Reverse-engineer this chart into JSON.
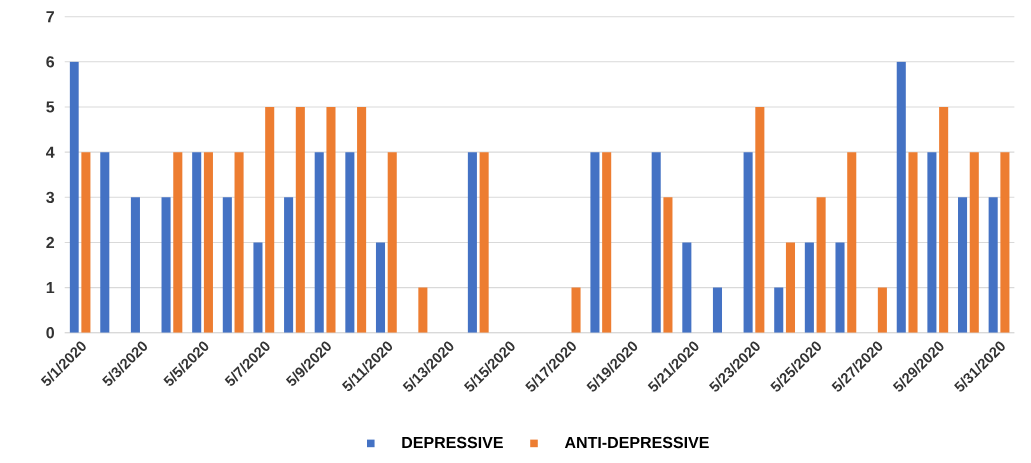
{
  "chart_data": {
    "type": "bar",
    "categories": [
      "5/1/2020",
      null,
      "5/3/2020",
      null,
      "5/5/2020",
      null,
      "5/7/2020",
      null,
      "5/9/2020",
      null,
      "5/11/2020",
      null,
      "5/13/2020",
      null,
      "5/15/2020",
      null,
      "5/17/2020",
      null,
      "5/19/2020",
      null,
      "5/21/2020",
      null,
      "5/23/2020",
      null,
      "5/25/2020",
      null,
      "5/27/2020",
      null,
      "5/29/2020",
      null,
      "5/31/2020"
    ],
    "series": [
      {
        "name": "DEPRESSIVE",
        "color": "#4472c4",
        "values": [
          6,
          4,
          3,
          3,
          4,
          3,
          2,
          3,
          4,
          4,
          2,
          0,
          0,
          4,
          0,
          0,
          0,
          4,
          0,
          4,
          2,
          1,
          4,
          1,
          2,
          2,
          0,
          6,
          4,
          3,
          3
        ]
      },
      {
        "name": "ANTI-DEPRESSIVE",
        "color": "#ed7d31",
        "values": [
          4,
          0,
          0,
          4,
          4,
          4,
          5,
          5,
          5,
          5,
          4,
          1,
          0,
          4,
          0,
          0,
          1,
          4,
          0,
          3,
          0,
          0,
          5,
          2,
          3,
          4,
          1,
          4,
          5,
          4,
          4
        ]
      }
    ],
    "ylim": [
      0,
      7
    ],
    "yticks": [
      0,
      1,
      2,
      3,
      4,
      5,
      6,
      7
    ],
    "grid": "y",
    "legend": "bottom"
  }
}
